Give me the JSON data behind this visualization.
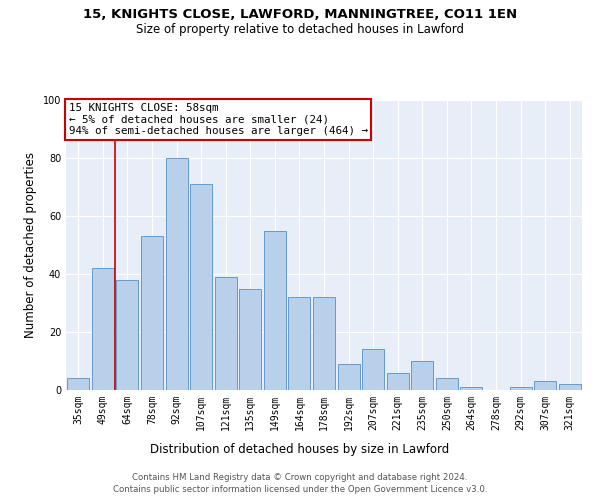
{
  "title1": "15, KNIGHTS CLOSE, LAWFORD, MANNINGTREE, CO11 1EN",
  "title2": "Size of property relative to detached houses in Lawford",
  "xlabel": "Distribution of detached houses by size in Lawford",
  "ylabel": "Number of detached properties",
  "categories": [
    "35sqm",
    "49sqm",
    "64sqm",
    "78sqm",
    "92sqm",
    "107sqm",
    "121sqm",
    "135sqm",
    "149sqm",
    "164sqm",
    "178sqm",
    "192sqm",
    "207sqm",
    "221sqm",
    "235sqm",
    "250sqm",
    "264sqm",
    "278sqm",
    "292sqm",
    "307sqm",
    "321sqm"
  ],
  "values": [
    4,
    42,
    38,
    53,
    80,
    71,
    39,
    35,
    55,
    32,
    32,
    9,
    14,
    6,
    10,
    4,
    1,
    0,
    1,
    3,
    2
  ],
  "bar_color": "#b8d0ea",
  "bar_edge_color": "#6699cc",
  "vline_x_index": 1.5,
  "vline_color": "#cc0000",
  "annotation_text": "15 KNIGHTS CLOSE: 58sqm\n← 5% of detached houses are smaller (24)\n94% of semi-detached houses are larger (464) →",
  "annotation_box_color": "#ffffff",
  "annotation_box_edge_color": "#cc0000",
  "ylim": [
    0,
    100
  ],
  "background_color": "#e8eef8",
  "grid_color": "#ffffff",
  "footer1": "Contains HM Land Registry data © Crown copyright and database right 2024.",
  "footer2": "Contains public sector information licensed under the Open Government Licence v3.0."
}
